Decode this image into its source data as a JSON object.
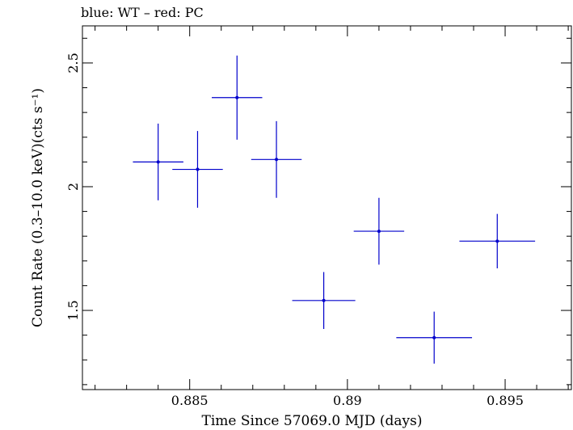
{
  "chart_data": {
    "type": "scatter",
    "title": "blue: WT – red: PC",
    "xlabel": "Time Since 57069.0 MJD (days)",
    "ylabel": "Count Rate (0.3–10.0 keV)(cts s⁻¹)",
    "xlim": [
      0.8816,
      0.8971
    ],
    "ylim": [
      1.18,
      2.65
    ],
    "x_ticks": [
      0.885,
      0.89,
      0.895
    ],
    "x_tick_labels": [
      "0.885",
      "0.89",
      "0.895"
    ],
    "y_ticks": [
      1.5,
      2,
      2.5
    ],
    "y_tick_labels": [
      "1.5",
      "2",
      "2.5"
    ],
    "grid": false,
    "series": [
      {
        "color": "#0000cc",
        "points": [
          {
            "x": 0.884,
            "y": 2.1,
            "xerr": 0.0008,
            "yerr": 0.155
          },
          {
            "x": 0.88525,
            "y": 2.07,
            "xerr": 0.0008,
            "yerr": 0.155
          },
          {
            "x": 0.8865,
            "y": 2.36,
            "xerr": 0.0008,
            "yerr": 0.17
          },
          {
            "x": 0.88775,
            "y": 2.11,
            "xerr": 0.0008,
            "yerr": 0.155
          },
          {
            "x": 0.88925,
            "y": 1.54,
            "xerr": 0.001,
            "yerr": 0.115
          },
          {
            "x": 0.891,
            "y": 1.82,
            "xerr": 0.0008,
            "yerr": 0.135
          },
          {
            "x": 0.89275,
            "y": 1.39,
            "xerr": 0.0012,
            "yerr": 0.105
          },
          {
            "x": 0.89475,
            "y": 1.78,
            "xerr": 0.0012,
            "yerr": 0.11
          }
        ]
      }
    ]
  }
}
